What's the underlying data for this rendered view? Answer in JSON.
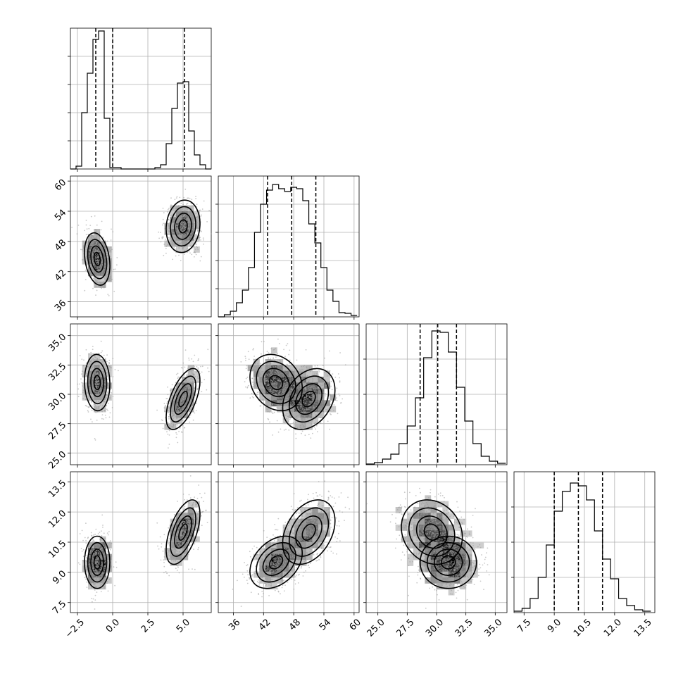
{
  "chart_data": {
    "type": "corner",
    "title": "",
    "parameters": [
      {
        "xlim": [
          -3.0,
          7.0
        ],
        "ticks": [
          -2.5,
          0.0,
          2.5,
          5.0
        ],
        "tick_labels": [
          "−2.5",
          "0.0",
          "2.5",
          "5.0"
        ],
        "quantiles": [
          -1.2,
          0.0,
          5.1
        ],
        "histogram": {
          "bins": [
            -3.0,
            -2.6,
            -2.2,
            -1.8,
            -1.4,
            -1.0,
            -0.6,
            -0.2,
            0.2,
            0.6,
            1.0,
            1.4,
            1.8,
            2.2,
            2.6,
            3.0,
            3.4,
            3.8,
            4.2,
            4.6,
            5.0,
            5.4,
            5.8,
            6.2,
            6.6,
            7.0
          ],
          "counts": [
            0,
            2,
            40,
            68,
            92,
            98,
            36,
            1,
            1,
            0,
            0,
            0,
            0,
            0,
            0,
            1,
            3,
            18,
            43,
            61,
            62,
            27,
            10,
            3,
            0
          ],
          "ylim": [
            0,
            100
          ],
          "ticks": [
            20,
            40,
            60,
            80
          ]
        }
      },
      {
        "xlim": [
          33.0,
          61.0
        ],
        "ticks": [
          36,
          42,
          48,
          54,
          60
        ],
        "tick_labels": [
          "36",
          "42",
          "48",
          "54",
          "60"
        ],
        "quantiles": [
          42.8,
          47.6,
          52.4
        ],
        "histogram": {
          "bins": [
            33.0,
            34.2,
            35.4,
            36.6,
            37.8,
            39.0,
            40.2,
            41.4,
            42.6,
            43.8,
            45.0,
            46.2,
            47.4,
            48.6,
            49.8,
            51.0,
            52.2,
            53.4,
            54.6,
            55.8,
            57.0,
            58.2,
            59.4,
            60.6
          ],
          "counts": [
            0,
            3,
            8,
            20,
            38,
            70,
            120,
            160,
            180,
            188,
            182,
            178,
            184,
            182,
            165,
            132,
            105,
            70,
            38,
            22,
            6,
            5,
            2
          ],
          "ylim": [
            0,
            200
          ],
          "ticks": [
            40,
            80,
            120,
            160
          ]
        }
      },
      {
        "xlim": [
          24.0,
          36.0
        ],
        "ticks": [
          25.0,
          27.5,
          30.0,
          32.5,
          35.0
        ],
        "tick_labels": [
          "25.0",
          "27.5",
          "30.0",
          "32.5",
          "35.0"
        ],
        "quantiles": [
          28.6,
          30.1,
          31.7
        ],
        "histogram": {
          "bins": [
            24.0,
            24.7,
            25.4,
            26.1,
            26.8,
            27.5,
            28.2,
            28.9,
            29.6,
            30.3,
            31.0,
            31.7,
            32.4,
            33.1,
            33.8,
            34.5,
            35.2,
            35.9
          ],
          "counts": [
            1,
            3,
            8,
            15,
            30,
            55,
            95,
            152,
            190,
            188,
            160,
            110,
            62,
            30,
            12,
            5,
            2
          ],
          "ylim": [
            0,
            200
          ],
          "ticks": [
            50,
            100,
            150
          ]
        }
      },
      {
        "xlim": [
          7.0,
          14.0
        ],
        "ticks": [
          7.5,
          9.0,
          10.5,
          12.0,
          13.5
        ],
        "tick_labels": [
          "7.5",
          "9.0",
          "10.5",
          "12.0",
          "13.5"
        ],
        "quantiles": [
          9.0,
          10.2,
          11.4
        ],
        "histogram": {
          "bins": [
            7.0,
            7.4,
            7.8,
            8.2,
            8.6,
            9.0,
            9.4,
            9.8,
            10.2,
            10.6,
            11.0,
            11.4,
            11.8,
            12.2,
            12.6,
            13.0,
            13.4,
            13.8
          ],
          "counts": [
            1,
            3,
            10,
            25,
            48,
            72,
            86,
            92,
            90,
            80,
            58,
            38,
            24,
            10,
            5,
            2,
            1
          ],
          "ylim": [
            0,
            100
          ],
          "ticks": [
            25,
            50,
            75
          ]
        }
      }
    ],
    "pairs": [
      {
        "x_param": 0,
        "y_param": 1,
        "clusters": [
          {
            "weight": 0.5,
            "mean": [
              -1.1,
              44.5
            ],
            "sd": [
              0.45,
              2.6
            ],
            "corr": -0.25
          },
          {
            "weight": 0.5,
            "mean": [
              5.0,
              51.0
            ],
            "sd": [
              0.6,
              2.6
            ],
            "corr": 0.1
          }
        ]
      },
      {
        "x_param": 0,
        "y_param": 2,
        "clusters": [
          {
            "weight": 0.5,
            "mean": [
              -1.1,
              31.0
            ],
            "sd": [
              0.45,
              1.2
            ],
            "corr": -0.05
          },
          {
            "weight": 0.5,
            "mean": [
              5.0,
              29.6
            ],
            "sd": [
              0.6,
              1.3
            ],
            "corr": 0.6
          }
        ]
      },
      {
        "x_param": 1,
        "y_param": 2,
        "clusters": [
          {
            "weight": 0.5,
            "mean": [
              44.5,
              31.0
            ],
            "sd": [
              2.6,
              1.2
            ],
            "corr": -0.2
          },
          {
            "weight": 0.5,
            "mean": [
              51.0,
              29.6
            ],
            "sd": [
              2.6,
              1.3
            ],
            "corr": 0.3
          }
        ]
      },
      {
        "x_param": 0,
        "y_param": 3,
        "clusters": [
          {
            "weight": 0.5,
            "mean": [
              -1.1,
              9.5
            ],
            "sd": [
              0.45,
              0.65
            ],
            "corr": 0.0
          },
          {
            "weight": 0.5,
            "mean": [
              5.0,
              11.0
            ],
            "sd": [
              0.6,
              0.8
            ],
            "corr": 0.55
          }
        ]
      },
      {
        "x_param": 1,
        "y_param": 3,
        "clusters": [
          {
            "weight": 0.5,
            "mean": [
              44.5,
              9.5
            ],
            "sd": [
              2.6,
              0.65
            ],
            "corr": 0.35
          },
          {
            "weight": 0.5,
            "mean": [
              51.0,
              11.0
            ],
            "sd": [
              2.6,
              0.8
            ],
            "corr": 0.35
          }
        ]
      },
      {
        "x_param": 2,
        "y_param": 3,
        "clusters": [
          {
            "weight": 0.5,
            "mean": [
              31.0,
              9.5
            ],
            "sd": [
              1.2,
              0.65
            ],
            "corr": 0.0
          },
          {
            "weight": 0.5,
            "mean": [
              29.6,
              11.0
            ],
            "sd": [
              1.3,
              0.8
            ],
            "corr": -0.15
          }
        ]
      }
    ],
    "grid": true,
    "colors": {
      "points": "#9a9a9a",
      "lines": "#000000",
      "grid": "#b0b0b0"
    }
  }
}
